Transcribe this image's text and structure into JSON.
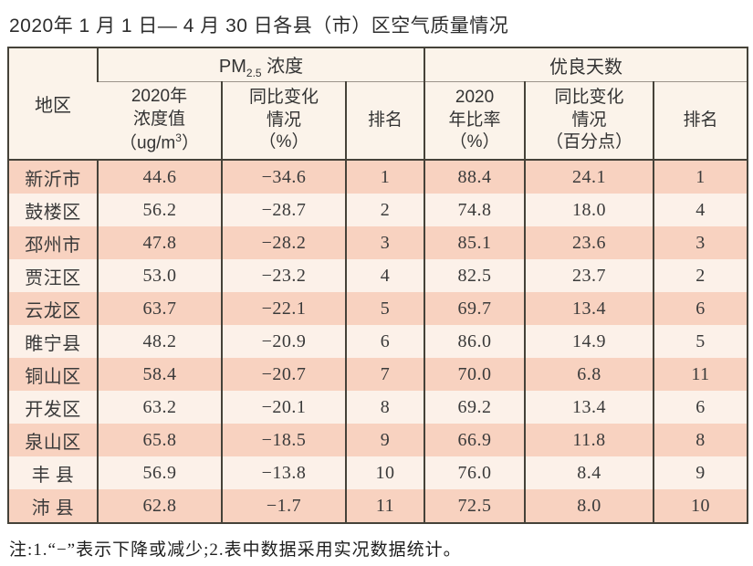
{
  "title": "2020年 1 月 1 日— 4 月 30 日各县（市）区空气质量情况",
  "table": {
    "region_header": "地区",
    "pm_group": {
      "prefix": "PM",
      "sub": "2.5",
      "suffix": " 浓度"
    },
    "good_group": "优良天数",
    "sub_headers": {
      "pm_value": {
        "line1": "2020年",
        "line2": "浓度值",
        "unit_prefix": "（ug/m",
        "unit_sup": "3",
        "unit_suffix": "）"
      },
      "pm_change": "同比变化\n情况\n（%）",
      "pm_rank": "排名",
      "good_ratio": "2020\n年比率\n（%）",
      "good_change": "同比变化\n情况\n（百分点）",
      "good_rank": "排名"
    },
    "rows": [
      {
        "region": "新沂市",
        "pm_value": "44.6",
        "pm_change": "−34.6",
        "pm_rank": "1",
        "good_ratio": "88.4",
        "good_change": "24.1",
        "good_rank": "1"
      },
      {
        "region": "鼓楼区",
        "pm_value": "56.2",
        "pm_change": "−28.7",
        "pm_rank": "2",
        "good_ratio": "74.8",
        "good_change": "18.0",
        "good_rank": "4"
      },
      {
        "region": "邳州市",
        "pm_value": "47.8",
        "pm_change": "−28.2",
        "pm_rank": "3",
        "good_ratio": "85.1",
        "good_change": "23.6",
        "good_rank": "3"
      },
      {
        "region": "贾汪区",
        "pm_value": "53.0",
        "pm_change": "−23.2",
        "pm_rank": "4",
        "good_ratio": "82.5",
        "good_change": "23.7",
        "good_rank": "2"
      },
      {
        "region": "云龙区",
        "pm_value": "63.7",
        "pm_change": "−22.1",
        "pm_rank": "5",
        "good_ratio": "69.7",
        "good_change": "13.4",
        "good_rank": "6"
      },
      {
        "region": "睢宁县",
        "pm_value": "48.2",
        "pm_change": "−20.9",
        "pm_rank": "6",
        "good_ratio": "86.0",
        "good_change": "14.9",
        "good_rank": "5"
      },
      {
        "region": "铜山区",
        "pm_value": "58.4",
        "pm_change": "−20.7",
        "pm_rank": "7",
        "good_ratio": "70.0",
        "good_change": "6.8",
        "good_rank": "11"
      },
      {
        "region": "开发区",
        "pm_value": "63.2",
        "pm_change": "−20.1",
        "pm_rank": "8",
        "good_ratio": "69.2",
        "good_change": "13.4",
        "good_rank": "6"
      },
      {
        "region": "泉山区",
        "pm_value": "65.8",
        "pm_change": "−18.5",
        "pm_rank": "9",
        "good_ratio": "66.9",
        "good_change": "11.8",
        "good_rank": "8"
      },
      {
        "region": "丰 县",
        "pm_value": "56.9",
        "pm_change": "−13.8",
        "pm_rank": "10",
        "good_ratio": "76.0",
        "good_change": "8.4",
        "good_rank": "9"
      },
      {
        "region": "沛 县",
        "pm_value": "62.8",
        "pm_change": "−1.7",
        "pm_rank": "11",
        "good_ratio": "72.5",
        "good_change": "8.0",
        "good_rank": "10"
      }
    ]
  },
  "note": "注:1.“−”表示下降或减少;2.表中数据采用实况数据统计。",
  "colors": {
    "row_pink": "#f8d2c0",
    "row_light": "#fcf1e9",
    "header_bg": "#fbf3ea",
    "border_dark": "#454239",
    "border_thin": "#9b948a"
  }
}
